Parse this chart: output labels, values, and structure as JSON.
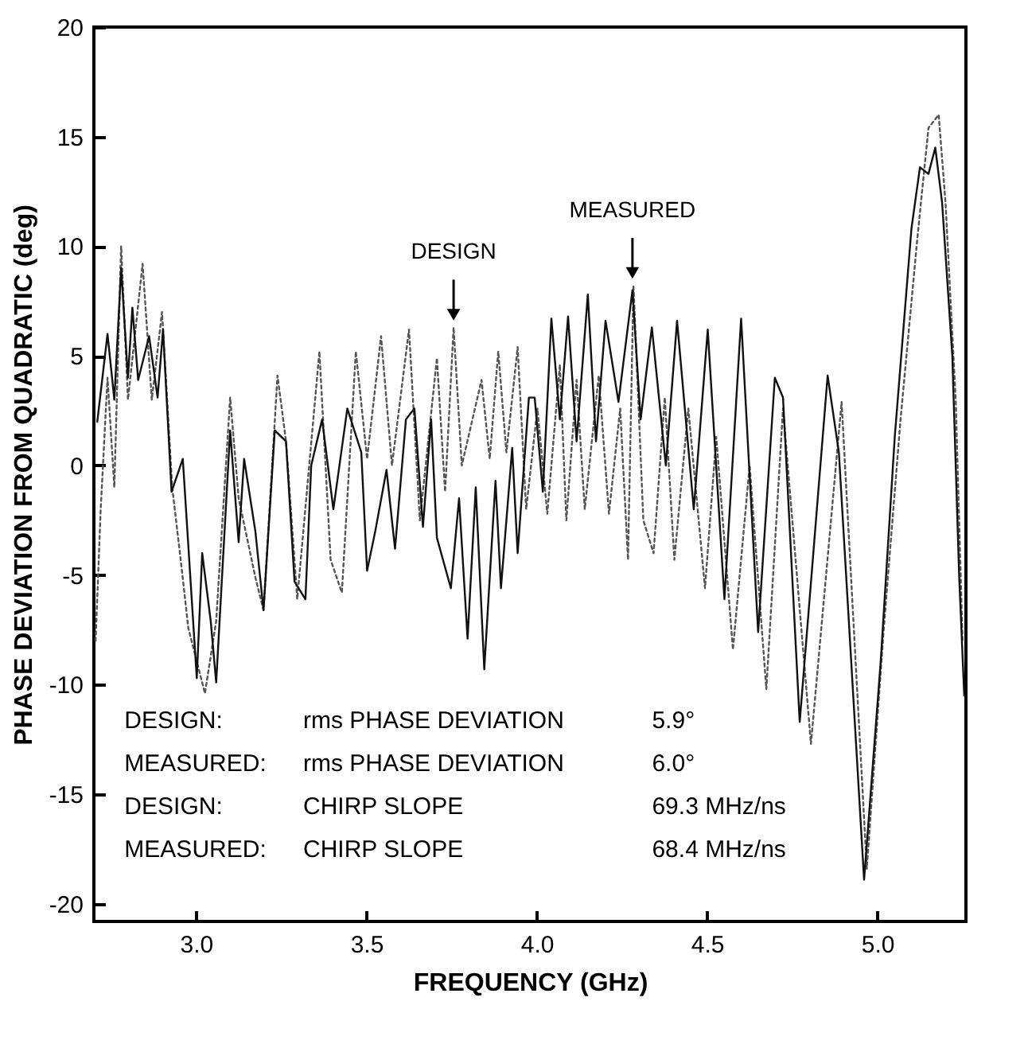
{
  "chart_data": {
    "type": "line",
    "xlabel": "FREQUENCY (GHz)",
    "ylabel": "PHASE DEVIATION FROM QUADRATIC (deg)",
    "xlim": [
      2.7,
      5.26
    ],
    "ylim": [
      -20.8,
      20
    ],
    "xticks": [
      {
        "value": 3,
        "label": "3.0"
      },
      3.5,
      {
        "value": 4,
        "label": "4.0"
      },
      4.5,
      {
        "value": 5,
        "label": "5.0"
      }
    ],
    "yticks": [
      -20,
      -15,
      -10,
      -5,
      0,
      5,
      10,
      15,
      20
    ],
    "grid": false,
    "marker": "none",
    "series": [
      {
        "color": "#555555",
        "line_style": "dotted",
        "x": [
          2.705,
          2.72,
          2.74,
          2.76,
          2.78,
          2.8,
          2.843,
          2.87,
          2.9,
          2.93,
          2.96,
          2.977,
          3.026,
          3.059,
          3.1,
          3.125,
          3.174,
          3.198,
          3.239,
          3.264,
          3.297,
          3.362,
          3.395,
          3.428,
          3.469,
          3.502,
          3.543,
          3.575,
          3.625,
          3.657,
          3.707,
          3.731,
          3.756,
          3.78,
          3.838,
          3.862,
          3.887,
          3.911,
          3.944,
          3.969,
          4.002,
          4.031,
          4.068,
          4.087,
          4.117,
          4.141,
          4.182,
          4.212,
          4.245,
          4.268,
          4.284,
          4.313,
          4.343,
          4.376,
          4.404,
          4.445,
          4.494,
          4.527,
          4.576,
          4.625,
          4.674,
          4.723,
          4.805,
          4.895,
          4.969,
          5.018,
          5.068,
          5.117,
          5.15,
          5.18,
          5.2,
          5.23,
          5.25
        ],
        "values": [
          -8,
          -2,
          4,
          -1,
          10,
          3,
          9.2,
          3,
          7,
          -1,
          -5,
          -7.4,
          -10.4,
          -7.1,
          3.1,
          -1.5,
          -5.1,
          -6.6,
          4.1,
          1.1,
          -6.1,
          5.2,
          -4.3,
          -5.8,
          5.2,
          0.3,
          5.9,
          0,
          6.2,
          -2.5,
          4.9,
          -1.2,
          6.3,
          0,
          3.9,
          0.3,
          5.2,
          0.6,
          5.4,
          -2,
          2.6,
          -2.2,
          4.6,
          -2.5,
          3.9,
          -2,
          4.1,
          -2.2,
          2.6,
          -4.3,
          8.2,
          -2.5,
          -4,
          3.1,
          -4.3,
          2.6,
          -5.6,
          1.3,
          -8.4,
          0,
          -10.2,
          2.6,
          -12.7,
          2.9,
          -18.4,
          -7.6,
          2.1,
          10.3,
          15.4,
          16,
          12,
          3,
          -8
        ]
      },
      {
        "color": "#111111",
        "line_style": "solid",
        "x": [
          2.71,
          2.74,
          2.76,
          2.78,
          2.8,
          2.813,
          2.83,
          2.862,
          2.887,
          2.903,
          2.928,
          2.961,
          3.002,
          3.018,
          3.043,
          3.059,
          3.1,
          3.125,
          3.141,
          3.174,
          3.198,
          3.231,
          3.264,
          3.289,
          3.321,
          3.338,
          3.37,
          3.403,
          3.444,
          3.485,
          3.502,
          3.526,
          3.559,
          3.584,
          3.616,
          3.641,
          3.666,
          3.69,
          3.707,
          3.748,
          3.772,
          3.797,
          3.821,
          3.846,
          3.879,
          3.895,
          3.928,
          3.944,
          3.977,
          3.994,
          4.018,
          4.043,
          4.068,
          4.092,
          4.117,
          4.15,
          4.174,
          4.202,
          4.24,
          4.281,
          4.305,
          4.338,
          4.379,
          4.412,
          4.461,
          4.502,
          4.551,
          4.6,
          4.65,
          4.699,
          4.723,
          4.772,
          4.854,
          4.887,
          4.961,
          5.01,
          5.051,
          5.1,
          5.125,
          5.15,
          5.17,
          5.19,
          5.22,
          5.24,
          5.255
        ],
        "values": [
          2,
          6,
          3,
          9,
          4,
          7.2,
          3.9,
          5.9,
          3.1,
          6.2,
          -1.2,
          0.3,
          -9.7,
          -4,
          -7.1,
          -9.9,
          1.6,
          -3.5,
          0.3,
          -3,
          -6.6,
          1.6,
          1.1,
          -5.3,
          -6.1,
          0,
          2.1,
          -2,
          2.6,
          0.6,
          -4.8,
          -3,
          -0.2,
          -3.8,
          2.1,
          2.6,
          -2.8,
          2.1,
          -3.3,
          -5.6,
          -1.5,
          -7.9,
          -1,
          -9.3,
          -0.7,
          -5.6,
          0.8,
          -4,
          3.1,
          3.1,
          -1.2,
          6.7,
          2.1,
          6.8,
          1.1,
          7.8,
          1.1,
          6.6,
          2.9,
          8,
          2.1,
          6.3,
          0,
          6.6,
          -2,
          6.2,
          -6.1,
          6.7,
          -7.6,
          4,
          3.1,
          -11.7,
          4.1,
          0.6,
          -18.9,
          -8.9,
          1.3,
          10.8,
          13.6,
          13.3,
          14.5,
          12,
          5,
          -5,
          -10.5
        ]
      }
    ],
    "annotations": [
      {
        "text": "DESIGN",
        "x": 3.756,
        "y": 6.3
      },
      {
        "text": "MEASURED",
        "x": 4.281,
        "y": 8.2
      },
      "DESIGN:",
      "rms PHASE DEVIATION",
      "5.9°",
      "MEASURED:",
      "rms PHASE DEVIATION",
      "6.0°",
      "DESIGN:",
      "CHIRP SLOPE",
      "69.3 MHz/ns",
      "MEASURED:",
      "CHIRP SLOPE",
      "68.4 MHz/ns"
    ]
  }
}
